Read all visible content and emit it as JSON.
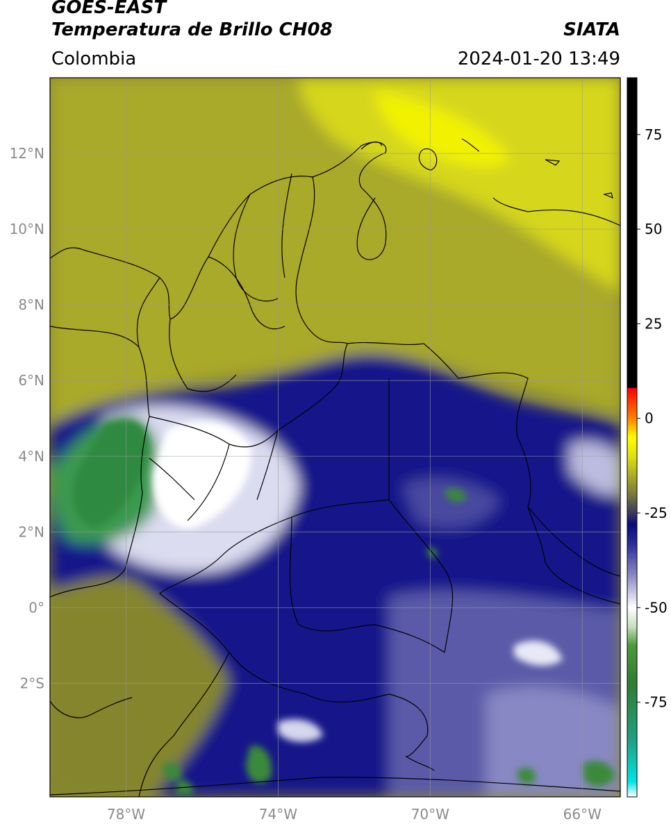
{
  "header": {
    "satellite": "GOES-EAST",
    "product": "Temperatura de Brillo CH08",
    "source": "SIATA",
    "region": "Colombia",
    "timestamp": "2024-01-20 13:49"
  },
  "map": {
    "lon_range": [
      -80,
      -65
    ],
    "lat_range": [
      -5,
      14
    ],
    "lat_ticks": [
      {
        "value": 12,
        "label": "12°N"
      },
      {
        "value": 10,
        "label": "10°N"
      },
      {
        "value": 8,
        "label": "8°N"
      },
      {
        "value": 6,
        "label": "6°N"
      },
      {
        "value": 4,
        "label": "4°N"
      },
      {
        "value": 2,
        "label": "2°N"
      },
      {
        "value": 0,
        "label": "0°"
      },
      {
        "value": -2,
        "label": "2°S"
      }
    ],
    "lon_ticks": [
      {
        "value": -78,
        "label": "78°W"
      },
      {
        "value": -74,
        "label": "74°W"
      },
      {
        "value": -70,
        "label": "70°W"
      },
      {
        "value": -66,
        "label": "66°W"
      }
    ],
    "gridlines": true
  },
  "colorbar": {
    "range": [
      -100,
      90
    ],
    "ticks": [
      {
        "value": 75,
        "label": "75"
      },
      {
        "value": 50,
        "label": "50"
      },
      {
        "value": 25,
        "label": "25"
      },
      {
        "value": 0,
        "label": "0"
      },
      {
        "value": -25,
        "label": "-25"
      },
      {
        "value": -50,
        "label": "-50"
      },
      {
        "value": -75,
        "label": "-75"
      }
    ],
    "stops": [
      {
        "value": -100,
        "color": "#ffffff"
      },
      {
        "value": -96,
        "color": "#00e5e5"
      },
      {
        "value": -85,
        "color": "#20a080"
      },
      {
        "value": -70,
        "color": "#2e7d32"
      },
      {
        "value": -60,
        "color": "#4a9a3a"
      },
      {
        "value": -55,
        "color": "#c8e0c0"
      },
      {
        "value": -50,
        "color": "#ffffff"
      },
      {
        "value": -42,
        "color": "#9090c8"
      },
      {
        "value": -33,
        "color": "#2a2a9a"
      },
      {
        "value": -28,
        "color": "#0a0a80"
      },
      {
        "value": -25,
        "color": "#3a3a60"
      },
      {
        "value": -20,
        "color": "#7a7a3a"
      },
      {
        "value": -10,
        "color": "#e0e010"
      },
      {
        "value": -5,
        "color": "#ffff00"
      },
      {
        "value": 0,
        "color": "#ff8000"
      },
      {
        "value": 8,
        "color": "#ff0000"
      },
      {
        "value": 8.1,
        "color": "#000000"
      },
      {
        "value": 90,
        "color": "#000000"
      }
    ]
  }
}
